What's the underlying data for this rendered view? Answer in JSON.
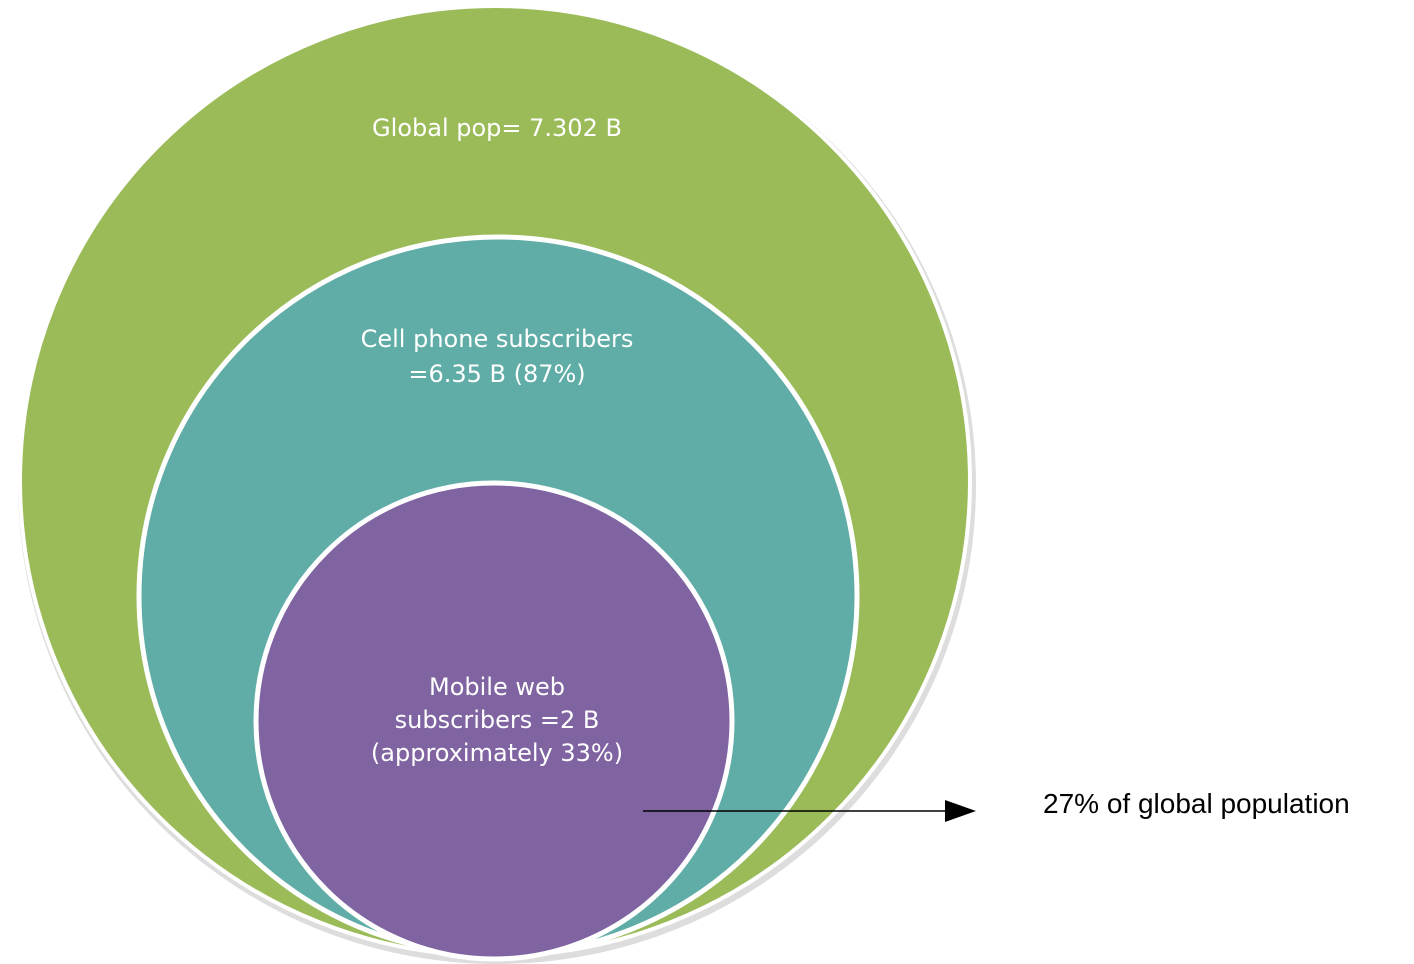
{
  "circles": {
    "outer": {
      "label": "Global pop= 7.302 B",
      "fill": "#9bbb59"
    },
    "middle": {
      "label_line1": "Cell phone subscribers",
      "label_line2": "=6.35 B (87%)",
      "fill": "#5fada6"
    },
    "inner": {
      "label_line1": "Mobile web",
      "label_line2": "subscribers =2 B",
      "label_line3": "(approximately 33%)",
      "fill": "#8064a2"
    }
  },
  "annotation": {
    "text": "27% of global population"
  },
  "colors": {
    "ring_stroke": "#ffffff",
    "shadow": "#c8c8c8",
    "arrow": "#000000"
  }
}
